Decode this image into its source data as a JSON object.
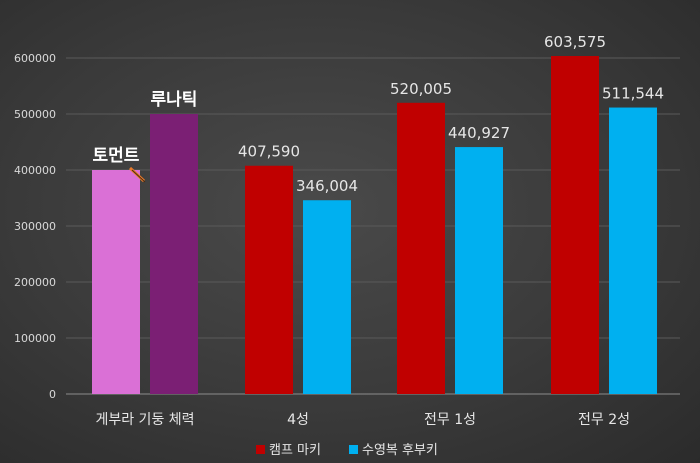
{
  "chart_data": {
    "type": "bar",
    "categories": [
      "게부라 기둥 체력",
      "4성",
      "전무 1성",
      "전무 2성"
    ],
    "ylim": [
      0,
      650000
    ],
    "yticks": [
      0,
      100000,
      200000,
      300000,
      400000,
      500000,
      600000
    ],
    "ytick_labels": [
      "0",
      "100000",
      "200000",
      "300000",
      "400000",
      "500000",
      "600000"
    ],
    "grid": true,
    "legend_position": "bottom",
    "series": [
      {
        "name": "캠프 마키",
        "color": "#c00000",
        "values": [
          400000,
          407590,
          520005,
          603575
        ],
        "labels": [
          "토먼트",
          "407,590",
          "520,005",
          "603,575"
        ],
        "first_color": "#da70d6"
      },
      {
        "name": "수영복 후부키",
        "color": "#00b0f0",
        "values": [
          500000,
          346004,
          440927,
          511544
        ],
        "labels": [
          "루나틱",
          "346,004",
          "440,927",
          "511,544"
        ],
        "first_color": "#7b1f74"
      }
    ]
  }
}
